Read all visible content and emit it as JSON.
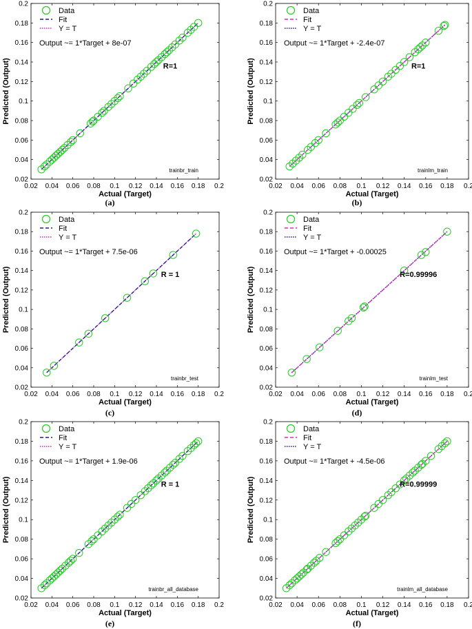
{
  "style": {
    "data_color": "#22cc22",
    "axis_color": "#000000"
  },
  "chart_data": [
    {
      "type": "scatter",
      "panel": "(a)",
      "xlabel": "Actual (Target)",
      "ylabel": "Predicted (Output)",
      "xlim": [
        0.02,
        0.2
      ],
      "ylim": [
        0.02,
        0.2
      ],
      "xticks": [
        "0.02",
        "0.04",
        "0.06",
        "0.08",
        "0.1",
        "0.12",
        "0.14",
        "0.16",
        "0.18",
        "0.2"
      ],
      "yticks": [
        "0.02",
        "0.04",
        "0.06",
        "0.08",
        "0.1",
        "0.12",
        "0.14",
        "0.16",
        "0.18",
        "0.2"
      ],
      "legend": [
        "Data",
        "Fit",
        "Y = T"
      ],
      "legend_placement": "top-left",
      "fit_color": "#1a1a8c",
      "yt_color": "#cc22cc",
      "equation": "Output ~= 1*Target + 8e-07",
      "r_label": "R=1",
      "annotation": "trainbr_train",
      "fit": {
        "slope": 1,
        "intercept": 8e-07
      },
      "x": [
        0.03,
        0.033,
        0.035,
        0.038,
        0.04,
        0.042,
        0.044,
        0.046,
        0.048,
        0.05,
        0.052,
        0.055,
        0.058,
        0.06,
        0.067,
        0.077,
        0.079,
        0.08,
        0.084,
        0.088,
        0.09,
        0.094,
        0.097,
        0.1,
        0.103,
        0.105,
        0.113,
        0.118,
        0.122,
        0.125,
        0.128,
        0.131,
        0.135,
        0.138,
        0.14,
        0.142,
        0.145,
        0.148,
        0.15,
        0.152,
        0.155,
        0.158,
        0.162,
        0.165,
        0.17,
        0.173,
        0.176,
        0.18
      ],
      "y": [
        0.03,
        0.033,
        0.035,
        0.038,
        0.04,
        0.042,
        0.044,
        0.046,
        0.048,
        0.05,
        0.052,
        0.055,
        0.058,
        0.06,
        0.067,
        0.077,
        0.079,
        0.08,
        0.084,
        0.088,
        0.09,
        0.094,
        0.097,
        0.1,
        0.103,
        0.105,
        0.113,
        0.118,
        0.122,
        0.125,
        0.128,
        0.131,
        0.135,
        0.138,
        0.14,
        0.142,
        0.145,
        0.148,
        0.15,
        0.152,
        0.155,
        0.158,
        0.162,
        0.165,
        0.17,
        0.173,
        0.176,
        0.18
      ]
    },
    {
      "type": "scatter",
      "panel": "(b)",
      "xlabel": "Actual (Target)",
      "ylabel": "Predicted (Output)",
      "xlim": [
        0.02,
        0.2
      ],
      "ylim": [
        0.02,
        0.2
      ],
      "xticks": [
        "0.02",
        "0.04",
        "0.06",
        "0.08",
        "0.1",
        "0.12",
        "0.14",
        "0.16",
        "0.18",
        "0.2"
      ],
      "yticks": [
        "0.02",
        "0.04",
        "0.06",
        "0.08",
        "0.1",
        "0.12",
        "0.14",
        "0.16",
        "0.18",
        "0.2"
      ],
      "legend": [
        "Data",
        "Fit",
        "Y = T"
      ],
      "legend_placement": "top-left",
      "fit_color": "#dd22cc",
      "yt_color": "#1a1a8c",
      "equation": "Output ~= 1*Target + -2.4e-07",
      "r_label": "R=1",
      "annotation": "trainlm_train",
      "fit": {
        "slope": 1,
        "intercept": -2.4e-07
      },
      "x": [
        0.033,
        0.036,
        0.039,
        0.042,
        0.045,
        0.05,
        0.053,
        0.057,
        0.06,
        0.067,
        0.076,
        0.078,
        0.08,
        0.084,
        0.088,
        0.092,
        0.096,
        0.098,
        0.104,
        0.112,
        0.116,
        0.12,
        0.125,
        0.128,
        0.132,
        0.136,
        0.14,
        0.145,
        0.15,
        0.153,
        0.155,
        0.157,
        0.16,
        0.172,
        0.177,
        0.178
      ],
      "y": [
        0.033,
        0.036,
        0.039,
        0.042,
        0.045,
        0.05,
        0.053,
        0.057,
        0.06,
        0.067,
        0.076,
        0.078,
        0.08,
        0.084,
        0.088,
        0.092,
        0.096,
        0.098,
        0.104,
        0.112,
        0.116,
        0.12,
        0.125,
        0.128,
        0.132,
        0.136,
        0.14,
        0.145,
        0.15,
        0.153,
        0.155,
        0.157,
        0.16,
        0.172,
        0.177,
        0.178
      ]
    },
    {
      "type": "scatter",
      "panel": "(c)",
      "xlabel": "Actual (Target)",
      "ylabel": "Predicted (Output)",
      "xlim": [
        0.02,
        0.2
      ],
      "ylim": [
        0.02,
        0.2
      ],
      "xticks": [
        "0.02",
        "0.04",
        "0.06",
        "0.08",
        "0.1",
        "0.12",
        "0.14",
        "0.16",
        "0.18",
        "0.2"
      ],
      "yticks": [
        "0.02",
        "0.04",
        "0.06",
        "0.08",
        "0.1",
        "0.12",
        "0.14",
        "0.16",
        "0.18",
        "0.2"
      ],
      "legend": [
        "Data",
        "Fit",
        "Y = T"
      ],
      "legend_placement": "top-left",
      "fit_color": "#1a1a8c",
      "yt_color": "#cc22cc",
      "equation": "Output ~= 1*Target + 7.5e-06",
      "r_label": "R = 1",
      "annotation": "trainbr_test",
      "fit": {
        "slope": 1,
        "intercept": 7.5e-06
      },
      "x": [
        0.035,
        0.042,
        0.066,
        0.075,
        0.091,
        0.112,
        0.129,
        0.137,
        0.156,
        0.178
      ],
      "y": [
        0.035,
        0.042,
        0.066,
        0.075,
        0.091,
        0.112,
        0.129,
        0.137,
        0.156,
        0.178
      ]
    },
    {
      "type": "scatter",
      "panel": "(d)",
      "xlabel": "Actual (Target)",
      "ylabel": "Predicted (Output)",
      "xlim": [
        0.02,
        0.2
      ],
      "ylim": [
        0.02,
        0.2
      ],
      "xticks": [
        "0.02",
        "0.04",
        "0.06",
        "0.08",
        "0.1",
        "0.12",
        "0.14",
        "0.16",
        "0.18",
        "0.2"
      ],
      "yticks": [
        "0.02",
        "0.04",
        "0.06",
        "0.08",
        "0.1",
        "0.12",
        "0.14",
        "0.16",
        "0.18",
        "0.2"
      ],
      "legend": [
        "Data",
        "Fit",
        "Y = T"
      ],
      "legend_placement": "top-left",
      "fit_color": "#dd22cc",
      "yt_color": "#1a1a8c",
      "equation": "Output ~= 1*Target + -0.00025",
      "r_label": "R=0.99996",
      "annotation": "trainlm_test",
      "fit": {
        "slope": 1,
        "intercept": -0.00025
      },
      "x": [
        0.035,
        0.049,
        0.061,
        0.078,
        0.088,
        0.091,
        0.102,
        0.103,
        0.14,
        0.156,
        0.16,
        0.18
      ],
      "y": [
        0.035,
        0.049,
        0.061,
        0.078,
        0.088,
        0.091,
        0.102,
        0.103,
        0.14,
        0.156,
        0.159,
        0.18
      ]
    },
    {
      "type": "scatter",
      "panel": "(e)",
      "xlabel": "Actual (Target)",
      "ylabel": "Predicted (Output)",
      "xlim": [
        0.02,
        0.2
      ],
      "ylim": [
        0.02,
        0.2
      ],
      "xticks": [
        "0.02",
        "0.04",
        "0.06",
        "0.08",
        "0.1",
        "0.12",
        "0.14",
        "0.16",
        "0.18",
        "0.2"
      ],
      "yticks": [
        "0.02",
        "0.04",
        "0.06",
        "0.08",
        "0.1",
        "0.12",
        "0.14",
        "0.16",
        "0.18",
        "0.2"
      ],
      "legend": [
        "Data",
        "Fit",
        "Y = T"
      ],
      "legend_placement": "top-left",
      "fit_color": "#1a1a8c",
      "yt_color": "#cc22cc",
      "equation": "Output ~= 1*Target + 1.9e-06",
      "r_label": "R = 1",
      "annotation": "trainbr_all_database",
      "fit": {
        "slope": 1,
        "intercept": 1.9e-06
      },
      "x": [
        0.03,
        0.033,
        0.035,
        0.038,
        0.04,
        0.042,
        0.044,
        0.046,
        0.048,
        0.05,
        0.053,
        0.056,
        0.058,
        0.06,
        0.066,
        0.075,
        0.078,
        0.08,
        0.084,
        0.088,
        0.091,
        0.094,
        0.097,
        0.1,
        0.103,
        0.105,
        0.112,
        0.116,
        0.12,
        0.125,
        0.129,
        0.132,
        0.135,
        0.137,
        0.14,
        0.142,
        0.145,
        0.148,
        0.15,
        0.153,
        0.156,
        0.158,
        0.162,
        0.165,
        0.17,
        0.173,
        0.176,
        0.178,
        0.18
      ],
      "y": [
        0.03,
        0.033,
        0.035,
        0.038,
        0.04,
        0.042,
        0.044,
        0.046,
        0.048,
        0.05,
        0.053,
        0.056,
        0.058,
        0.06,
        0.066,
        0.075,
        0.078,
        0.08,
        0.084,
        0.088,
        0.091,
        0.094,
        0.097,
        0.1,
        0.103,
        0.105,
        0.112,
        0.116,
        0.12,
        0.125,
        0.129,
        0.132,
        0.135,
        0.137,
        0.14,
        0.142,
        0.145,
        0.148,
        0.15,
        0.153,
        0.156,
        0.158,
        0.162,
        0.165,
        0.17,
        0.173,
        0.176,
        0.178,
        0.18
      ]
    },
    {
      "type": "scatter",
      "panel": "(f)",
      "xlabel": "Actual (Target)",
      "ylabel": "Predicted (Output)",
      "xlim": [
        0.02,
        0.2
      ],
      "ylim": [
        0.02,
        0.2
      ],
      "xticks": [
        "0.02",
        "0.04",
        "0.06",
        "0.08",
        "0.1",
        "0.12",
        "0.14",
        "0.16",
        "0.18",
        "0.2"
      ],
      "yticks": [
        "0.02",
        "0.04",
        "0.06",
        "0.08",
        "0.1",
        "0.12",
        "0.14",
        "0.16",
        "0.18",
        "0.2"
      ],
      "legend": [
        "Data",
        "Fit",
        "Y = T"
      ],
      "legend_placement": "top-left",
      "fit_color": "#dd22cc",
      "yt_color": "#1a1a8c",
      "equation": "Output ~= 1*Target + -4.5e-06",
      "r_label": "R=0.99999",
      "annotation": "trainlm_all_database",
      "fit": {
        "slope": 1,
        "intercept": -4.5e-06
      },
      "x": [
        0.03,
        0.033,
        0.035,
        0.038,
        0.04,
        0.042,
        0.044,
        0.046,
        0.049,
        0.05,
        0.053,
        0.056,
        0.058,
        0.061,
        0.067,
        0.076,
        0.078,
        0.08,
        0.084,
        0.088,
        0.091,
        0.094,
        0.097,
        0.1,
        0.103,
        0.104,
        0.112,
        0.116,
        0.12,
        0.125,
        0.128,
        0.132,
        0.136,
        0.14,
        0.142,
        0.145,
        0.148,
        0.15,
        0.153,
        0.156,
        0.157,
        0.16,
        0.165,
        0.172,
        0.175,
        0.178,
        0.18
      ],
      "y": [
        0.03,
        0.033,
        0.035,
        0.038,
        0.04,
        0.042,
        0.044,
        0.046,
        0.049,
        0.05,
        0.053,
        0.056,
        0.058,
        0.061,
        0.067,
        0.076,
        0.078,
        0.08,
        0.084,
        0.088,
        0.091,
        0.094,
        0.097,
        0.1,
        0.103,
        0.104,
        0.112,
        0.116,
        0.12,
        0.125,
        0.128,
        0.132,
        0.136,
        0.14,
        0.142,
        0.145,
        0.148,
        0.15,
        0.153,
        0.156,
        0.157,
        0.16,
        0.165,
        0.172,
        0.175,
        0.178,
        0.18
      ]
    }
  ]
}
